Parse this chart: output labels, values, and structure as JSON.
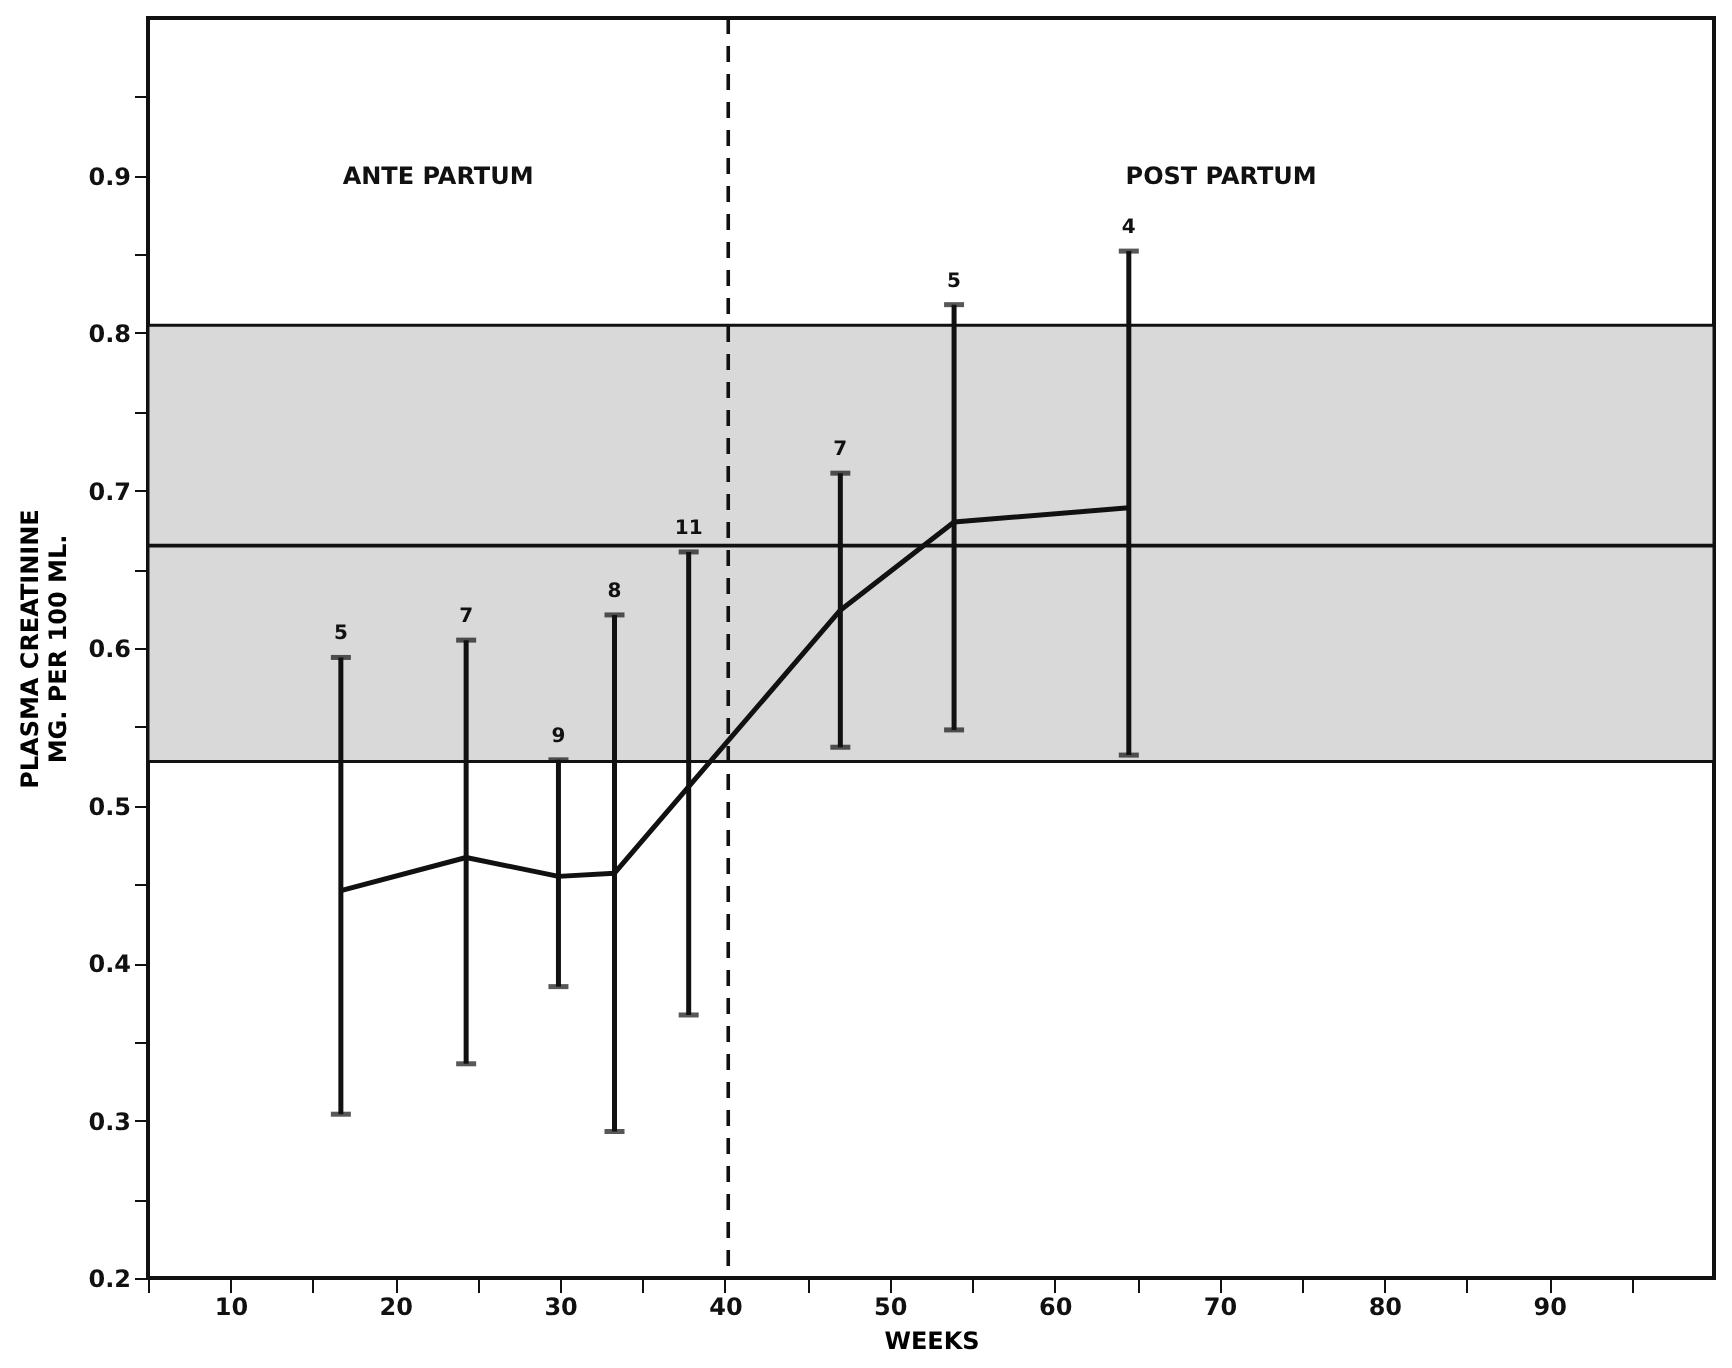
{
  "chart_data": {
    "type": "line",
    "xlabel": "WEEKS",
    "ylabel": "PLASMA CREATININE\nMG. PER 100 ML.",
    "x": [
      16.7,
      24.3,
      29.9,
      33.3,
      37.8,
      47.0,
      53.9,
      64.5
    ],
    "series": [
      {
        "color": "#111111",
        "values": [
          0.446,
          0.467,
          0.455,
          0.457,
          0.512,
          0.624,
          0.68,
          0.689
        ],
        "errors": [
          [
            0.304,
            0.594
          ],
          [
            0.336,
            0.605
          ],
          [
            0.385,
            0.529
          ],
          [
            0.293,
            0.621
          ],
          [
            0.367,
            0.661
          ],
          [
            0.537,
            0.711
          ],
          [
            0.548,
            0.818
          ],
          [
            0.532,
            0.852
          ]
        ]
      }
    ],
    "marker": "none",
    "line_style": "solid",
    "grid": false,
    "xlim": [
      5,
      100
    ],
    "ylim": [
      0.2,
      1.0
    ],
    "xticks": [
      {
        "value": 5,
        "label": null
      },
      10,
      {
        "value": 15,
        "label": null
      },
      20,
      {
        "value": 25,
        "label": null
      },
      30,
      {
        "value": 35,
        "label": null
      },
      40,
      {
        "value": 45,
        "label": null
      },
      50,
      {
        "value": 55,
        "label": null
      },
      60,
      {
        "value": 65,
        "label": null
      },
      70,
      {
        "value": 75,
        "label": null
      },
      80,
      {
        "value": 85,
        "label": null
      },
      90,
      {
        "value": 95,
        "label": null
      }
    ],
    "yticks": [
      0.2,
      {
        "value": 0.25,
        "label": null
      },
      0.3,
      {
        "value": 0.35,
        "label": null
      },
      0.4,
      {
        "value": 0.45,
        "label": null
      },
      0.5,
      {
        "value": 0.55,
        "label": null
      },
      0.6,
      {
        "value": 0.65,
        "label": null
      },
      0.7,
      {
        "value": 0.75,
        "label": null
      },
      0.8,
      {
        "value": 0.85,
        "label": null
      },
      0.9,
      {
        "value": 0.95,
        "label": null
      }
    ],
    "bands": [
      {
        "axis": "y",
        "from": 0.528,
        "to": 0.805,
        "color": "#d9d9d9"
      }
    ],
    "ref_lines": [
      {
        "axis": "y",
        "value": 0.665,
        "color": "#111111",
        "line_style": "solid"
      },
      {
        "axis": "x",
        "value": 40.2,
        "color": "#111111",
        "line_style": "dashed"
      }
    ],
    "annotations": [
      "ANTE PARTUM",
      "POST PARTUM",
      {
        "text": "5",
        "x": 16.7,
        "y": 0.594
      },
      {
        "text": "7",
        "x": 24.3,
        "y": 0.605
      },
      {
        "text": "9",
        "x": 29.9,
        "y": 0.529
      },
      {
        "text": "8",
        "x": 33.3,
        "y": 0.621
      },
      {
        "text": "11",
        "x": 37.8,
        "y": 0.661
      },
      {
        "text": "7",
        "x": 47.0,
        "y": 0.711
      },
      {
        "text": "5",
        "x": 53.9,
        "y": 0.818
      },
      {
        "text": "4",
        "x": 64.5,
        "y": 0.852
      }
    ]
  }
}
